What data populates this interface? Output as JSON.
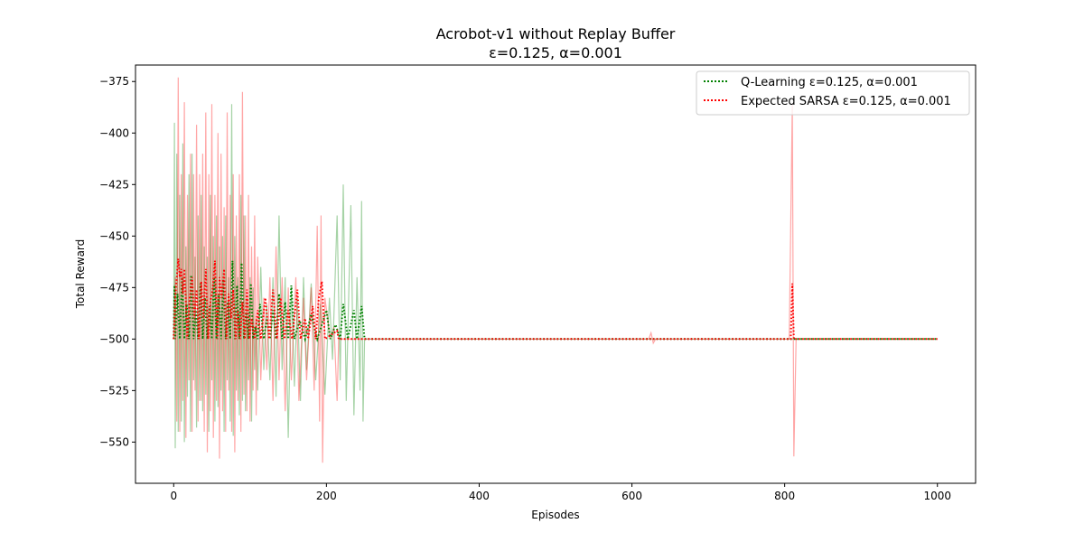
{
  "chart_data": {
    "type": "line",
    "title": "Acrobot-v1 without Replay Buffer",
    "subtitle": "ε=0.125, α=0.001",
    "xlabel": "Episodes",
    "ylabel": "Total Reward",
    "xlim": [
      -50,
      1050
    ],
    "ylim": [
      -570,
      -367
    ],
    "xticks": [
      0,
      200,
      400,
      600,
      800,
      1000
    ],
    "yticks": [
      -375,
      -400,
      -425,
      -450,
      -475,
      -500,
      -525,
      -550
    ],
    "grid": false,
    "legend_position": "top-right",
    "colors": {
      "q_learning": "#008000",
      "expected_sarsa": "#ff0000"
    },
    "series": [
      {
        "name": "Q-Learning ε=0.125, α=0.001",
        "color": "#008000",
        "style": "dotted",
        "points": [
          [
            0,
            -500
          ],
          [
            1,
            -474
          ],
          [
            2,
            -500
          ],
          [
            5,
            -478
          ],
          [
            8,
            -500
          ],
          [
            11,
            -470
          ],
          [
            14,
            -500
          ],
          [
            17,
            -483
          ],
          [
            20,
            -500
          ],
          [
            23,
            -469
          ],
          [
            26,
            -500
          ],
          [
            29,
            -486
          ],
          [
            32,
            -500
          ],
          [
            35,
            -473
          ],
          [
            38,
            -500
          ],
          [
            41,
            -480
          ],
          [
            44,
            -500
          ],
          [
            47,
            -484
          ],
          [
            50,
            -500
          ],
          [
            53,
            -470
          ],
          [
            56,
            -500
          ],
          [
            59,
            -478
          ],
          [
            62,
            -500
          ],
          [
            65,
            -471
          ],
          [
            68,
            -500
          ],
          [
            71,
            -482
          ],
          [
            74,
            -500
          ],
          [
            77,
            -462
          ],
          [
            80,
            -500
          ],
          [
            83,
            -474
          ],
          [
            86,
            -500
          ],
          [
            89,
            -463
          ],
          [
            92,
            -500
          ],
          [
            95,
            -487
          ],
          [
            98,
            -500
          ],
          [
            101,
            -473
          ],
          [
            104,
            -500
          ],
          [
            107,
            -494
          ],
          [
            110,
            -500
          ],
          [
            113,
            -483
          ],
          [
            118,
            -500
          ],
          [
            122,
            -490
          ],
          [
            126,
            -500
          ],
          [
            130,
            -486
          ],
          [
            134,
            -500
          ],
          [
            138,
            -478
          ],
          [
            142,
            -500
          ],
          [
            146,
            -482
          ],
          [
            150,
            -500
          ],
          [
            154,
            -474
          ],
          [
            158,
            -500
          ],
          [
            165,
            -491
          ],
          [
            172,
            -500
          ],
          [
            180,
            -488
          ],
          [
            188,
            -500
          ],
          [
            200,
            -486
          ],
          [
            205,
            -500
          ],
          [
            212,
            -493
          ],
          [
            218,
            -500
          ],
          [
            222,
            -483
          ],
          [
            228,
            -500
          ],
          [
            236,
            -486
          ],
          [
            240,
            -500
          ],
          [
            246,
            -484
          ],
          [
            250,
            -500
          ],
          [
            1000,
            -500
          ]
        ]
      },
      {
        "name": "Expected SARSA ε=0.125, α=0.001",
        "color": "#ff0000",
        "style": "dotted",
        "points": [
          [
            0,
            -500
          ],
          [
            2,
            -480
          ],
          [
            4,
            -470
          ],
          [
            6,
            -461
          ],
          [
            8,
            -470
          ],
          [
            10,
            -466
          ],
          [
            12,
            -478
          ],
          [
            14,
            -466
          ],
          [
            16,
            -483
          ],
          [
            18,
            -500
          ],
          [
            21,
            -480
          ],
          [
            24,
            -470
          ],
          [
            27,
            -490
          ],
          [
            30,
            -476
          ],
          [
            33,
            -500
          ],
          [
            36,
            -472
          ],
          [
            39,
            -490
          ],
          [
            42,
            -466
          ],
          [
            45,
            -500
          ],
          [
            48,
            -482
          ],
          [
            51,
            -476
          ],
          [
            54,
            -462
          ],
          [
            57,
            -500
          ],
          [
            60,
            -470
          ],
          [
            63,
            -480
          ],
          [
            66,
            -466
          ],
          [
            69,
            -500
          ],
          [
            72,
            -478
          ],
          [
            75,
            -490
          ],
          [
            78,
            -476
          ],
          [
            81,
            -500
          ],
          [
            84,
            -486
          ],
          [
            87,
            -500
          ],
          [
            90,
            -482
          ],
          [
            93,
            -500
          ],
          [
            96,
            -476
          ],
          [
            99,
            -500
          ],
          [
            102,
            -490
          ],
          [
            106,
            -500
          ],
          [
            110,
            -486
          ],
          [
            114,
            -500
          ],
          [
            120,
            -480
          ],
          [
            125,
            -500
          ],
          [
            130,
            -476
          ],
          [
            135,
            -500
          ],
          [
            140,
            -480
          ],
          [
            145,
            -500
          ],
          [
            150,
            -486
          ],
          [
            155,
            -500
          ],
          [
            162,
            -476
          ],
          [
            166,
            -500
          ],
          [
            172,
            -490
          ],
          [
            176,
            -500
          ],
          [
            182,
            -484
          ],
          [
            186,
            -500
          ],
          [
            190,
            -480
          ],
          [
            194,
            -472
          ],
          [
            198,
            -500
          ],
          [
            214,
            -496
          ],
          [
            216,
            -500
          ],
          [
            808,
            -500
          ],
          [
            810,
            -473
          ],
          [
            812,
            -500
          ],
          [
            1000,
            -500
          ]
        ]
      }
    ],
    "bands": [
      {
        "series": "Q-Learning ε=0.125, α=0.001",
        "color": "#008000",
        "opacity": 0.35,
        "points": [
          [
            0,
            -500
          ],
          [
            1,
            -395
          ],
          [
            2,
            -553
          ],
          [
            4,
            -410
          ],
          [
            6,
            -545
          ],
          [
            8,
            -430
          ],
          [
            10,
            -540
          ],
          [
            12,
            -405
          ],
          [
            14,
            -550
          ],
          [
            16,
            -455
          ],
          [
            18,
            -528
          ],
          [
            20,
            -420
          ],
          [
            22,
            -545
          ],
          [
            24,
            -410
          ],
          [
            26,
            -520
          ],
          [
            28,
            -460
          ],
          [
            30,
            -543
          ],
          [
            32,
            -440
          ],
          [
            34,
            -530
          ],
          [
            36,
            -430
          ],
          [
            38,
            -535
          ],
          [
            40,
            -455
          ],
          [
            42,
            -527
          ],
          [
            44,
            -460
          ],
          [
            46,
            -545
          ],
          [
            48,
            -430
          ],
          [
            50,
            -520
          ],
          [
            52,
            -450
          ],
          [
            54,
            -540
          ],
          [
            56,
            -440
          ],
          [
            58,
            -533
          ],
          [
            60,
            -455
          ],
          [
            62,
            -525
          ],
          [
            64,
            -450
          ],
          [
            66,
            -545
          ],
          [
            68,
            -440
          ],
          [
            70,
            -520
          ],
          [
            72,
            -470
          ],
          [
            74,
            -540
          ],
          [
            76,
            -386
          ],
          [
            78,
            -547
          ],
          [
            80,
            -450
          ],
          [
            82,
            -525
          ],
          [
            84,
            -470
          ],
          [
            86,
            -537
          ],
          [
            88,
            -430
          ],
          [
            90,
            -530
          ],
          [
            92,
            -440
          ],
          [
            94,
            -535
          ],
          [
            96,
            -480
          ],
          [
            98,
            -520
          ],
          [
            100,
            -470
          ],
          [
            102,
            -540
          ],
          [
            104,
            -475
          ],
          [
            106,
            -515
          ],
          [
            108,
            -490
          ],
          [
            110,
            -525
          ],
          [
            114,
            -465
          ],
          [
            118,
            -515
          ],
          [
            122,
            -483
          ],
          [
            126,
            -520
          ],
          [
            130,
            -470
          ],
          [
            134,
            -528
          ],
          [
            138,
            -440
          ],
          [
            142,
            -515
          ],
          [
            146,
            -470
          ],
          [
            150,
            -548
          ],
          [
            154,
            -475
          ],
          [
            158,
            -523
          ],
          [
            162,
            -480
          ],
          [
            166,
            -530
          ],
          [
            170,
            -470
          ],
          [
            174,
            -515
          ],
          [
            180,
            -473
          ],
          [
            186,
            -520
          ],
          [
            192,
            -483
          ],
          [
            198,
            -527
          ],
          [
            204,
            -480
          ],
          [
            208,
            -510
          ],
          [
            214,
            -440
          ],
          [
            218,
            -520
          ],
          [
            222,
            -425
          ],
          [
            226,
            -530
          ],
          [
            232,
            -435
          ],
          [
            236,
            -537
          ],
          [
            240,
            -470
          ],
          [
            244,
            -525
          ],
          [
            246,
            -433
          ],
          [
            248,
            -540
          ],
          [
            250,
            -500
          ],
          [
            1000,
            -500
          ]
        ]
      },
      {
        "series": "Expected SARSA ε=0.125, α=0.001",
        "color": "#ff0000",
        "opacity": 0.35,
        "points": [
          [
            0,
            -500
          ],
          [
            2,
            -470
          ],
          [
            4,
            -540
          ],
          [
            6,
            -373
          ],
          [
            8,
            -545
          ],
          [
            10,
            -420
          ],
          [
            12,
            -530
          ],
          [
            14,
            -385
          ],
          [
            16,
            -548
          ],
          [
            18,
            -430
          ],
          [
            20,
            -520
          ],
          [
            22,
            -410
          ],
          [
            24,
            -545
          ],
          [
            26,
            -420
          ],
          [
            28,
            -525
          ],
          [
            30,
            -396
          ],
          [
            32,
            -540
          ],
          [
            34,
            -420
          ],
          [
            36,
            -530
          ],
          [
            38,
            -410
          ],
          [
            40,
            -545
          ],
          [
            42,
            -390
          ],
          [
            44,
            -555
          ],
          [
            46,
            -420
          ],
          [
            48,
            -535
          ],
          [
            50,
            -386
          ],
          [
            52,
            -548
          ],
          [
            54,
            -430
          ],
          [
            56,
            -530
          ],
          [
            58,
            -400
          ],
          [
            60,
            -558
          ],
          [
            62,
            -410
          ],
          [
            64,
            -535
          ],
          [
            66,
            -436
          ],
          [
            68,
            -545
          ],
          [
            70,
            -390
          ],
          [
            72,
            -525
          ],
          [
            74,
            -430
          ],
          [
            76,
            -545
          ],
          [
            78,
            -420
          ],
          [
            80,
            -555
          ],
          [
            82,
            -440
          ],
          [
            84,
            -530
          ],
          [
            86,
            -420
          ],
          [
            88,
            -545
          ],
          [
            90,
            -380
          ],
          [
            92,
            -527
          ],
          [
            94,
            -440
          ],
          [
            96,
            -535
          ],
          [
            98,
            -430
          ],
          [
            100,
            -540
          ],
          [
            102,
            -455
          ],
          [
            104,
            -525
          ],
          [
            106,
            -440
          ],
          [
            108,
            -537
          ],
          [
            110,
            -460
          ],
          [
            114,
            -520
          ],
          [
            118,
            -480
          ],
          [
            122,
            -515
          ],
          [
            126,
            -470
          ],
          [
            130,
            -530
          ],
          [
            134,
            -455
          ],
          [
            138,
            -520
          ],
          [
            142,
            -470
          ],
          [
            146,
            -535
          ],
          [
            150,
            -475
          ],
          [
            154,
            -520
          ],
          [
            160,
            -470
          ],
          [
            164,
            -530
          ],
          [
            170,
            -480
          ],
          [
            174,
            -520
          ],
          [
            180,
            -475
          ],
          [
            184,
            -525
          ],
          [
            188,
            -445
          ],
          [
            191,
            -540
          ],
          [
            193,
            -440
          ],
          [
            195,
            -560
          ],
          [
            198,
            -480
          ],
          [
            205,
            -500
          ],
          [
            210,
            -494
          ],
          [
            214,
            -530
          ],
          [
            216,
            -500
          ],
          [
            622,
            -500
          ],
          [
            625,
            -497
          ],
          [
            628,
            -502
          ],
          [
            631,
            -500
          ],
          [
            806,
            -500
          ],
          [
            810,
            -386
          ],
          [
            812,
            -557
          ],
          [
            815,
            -500
          ],
          [
            1000,
            -500
          ]
        ]
      }
    ]
  }
}
